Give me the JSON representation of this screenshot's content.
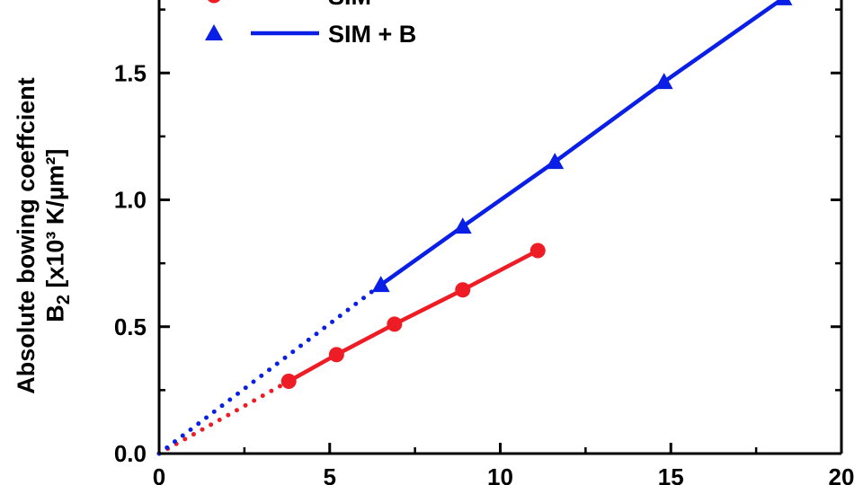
{
  "chart_data": {
    "type": "scatter",
    "xlim": [
      0,
      20
    ],
    "ylim": [
      0,
      1.8
    ],
    "x_ticks": [
      "0",
      "5",
      "10",
      "15",
      "20"
    ],
    "y_ticks": [
      "0.0",
      "0.5",
      "1.0",
      "1.5"
    ],
    "ylabel_line1": "Absolute bowing coeffcient",
    "ylabel_line2_main": "B",
    "ylabel_line2_sub": "2",
    "ylabel_line2_rest": " [x10³ K/µm²]",
    "grid": false,
    "legend_position": "top-left",
    "series": [
      {
        "name": "SIM",
        "color": "#ee1c25",
        "marker": "circle",
        "x": [
          3.8,
          5.2,
          6.9,
          8.9,
          11.1
        ],
        "y": [
          0.285,
          0.39,
          0.51,
          0.645,
          0.8
        ],
        "extrapolation": {
          "style": "dotted",
          "x": [
            0,
            3.8
          ],
          "y": [
            0,
            0.285
          ]
        }
      },
      {
        "name": "SIM + B",
        "color": "#0a1fe6",
        "marker": "triangle",
        "x": [
          6.5,
          8.9,
          11.6,
          14.8,
          18.3
        ],
        "y": [
          0.665,
          0.895,
          1.15,
          1.465,
          1.795
        ],
        "extrapolation": {
          "style": "dotted",
          "x": [
            0,
            6.5
          ],
          "y": [
            0,
            0.665
          ]
        }
      }
    ]
  }
}
